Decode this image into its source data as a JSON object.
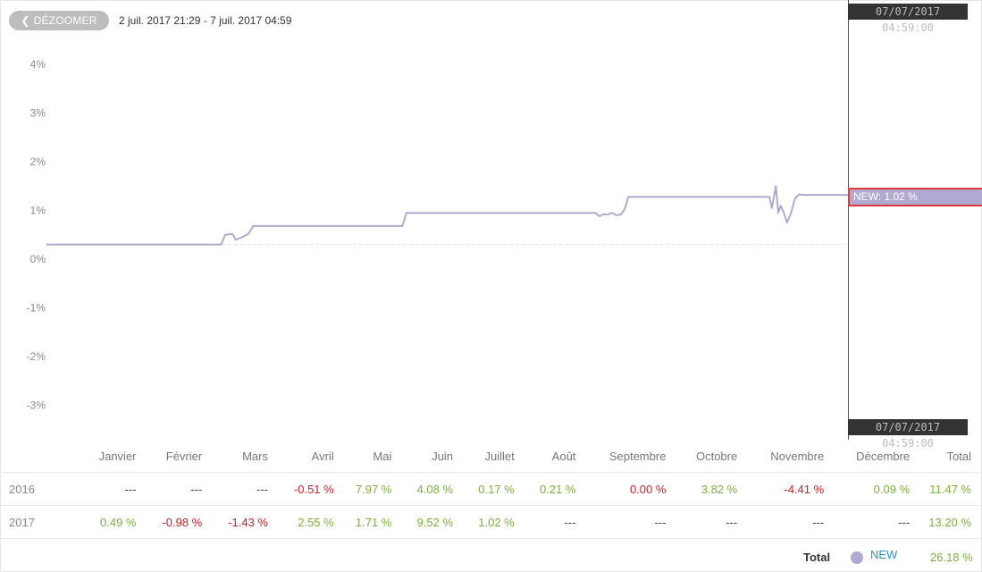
{
  "toolbar": {
    "zoom_out_label": "DÉZOOMER",
    "range_label": "2 juil. 2017 21:29 - 7 juil. 2017 04:59"
  },
  "crosshair": {
    "top_label": "07/07/2017 04:59:00",
    "bottom_label": "07/07/2017 04:59:00",
    "tooltip": "NEW: 1.02 %"
  },
  "chart_data": {
    "type": "line",
    "ylim": [
      -3.5,
      4.2
    ],
    "yticks": [
      4,
      3,
      2,
      1,
      0,
      -1,
      -2,
      -3
    ],
    "ytick_labels": [
      "4%",
      "3%",
      "2%",
      "1%",
      "0%",
      "-1%",
      "-2%",
      "-3%"
    ],
    "xlim": [
      0,
      100
    ],
    "grid": false,
    "baseline": 0.3,
    "series": [
      {
        "name": "NEW",
        "color": "#b1a9d2",
        "x": [
          0,
          21.8,
          22.3,
          23.2,
          23.6,
          24.4,
          25.2,
          25.8,
          26.4,
          44.4,
          44.9,
          45.4,
          68.5,
          69.0,
          69.4,
          70.0,
          70.6,
          71.1,
          71.7,
          72.2,
          72.6,
          72.9,
          73.3,
          73.6,
          74.1,
          90.2,
          90.5,
          91.0,
          91.3,
          91.6,
          92.0,
          92.4,
          92.9,
          93.4,
          93.9,
          94.5,
          100
        ],
        "y": [
          0.3,
          0.3,
          0.5,
          0.52,
          0.4,
          0.45,
          0.52,
          0.68,
          0.68,
          0.68,
          0.95,
          0.95,
          0.95,
          0.88,
          0.92,
          0.92,
          0.95,
          0.9,
          0.92,
          1.05,
          1.28,
          1.28,
          1.28,
          1.28,
          1.28,
          1.28,
          1.05,
          1.5,
          0.95,
          1.1,
          0.95,
          0.75,
          0.95,
          1.25,
          1.33,
          1.32,
          1.32
        ]
      }
    ]
  },
  "monthly": {
    "headers": [
      "Janvier",
      "Février",
      "Mars",
      "Avril",
      "Mai",
      "Juin",
      "Juillet",
      "Août",
      "Septembre",
      "Octobre",
      "Novembre",
      "Décembre",
      "Total"
    ],
    "rows": [
      {
        "year": "2016",
        "values": [
          "---",
          "---",
          "---",
          "-0.51 %",
          "7.97 %",
          "4.08 %",
          "0.17 %",
          "0.21 %",
          "0.00 %",
          "3.82 %",
          "-4.41 %",
          "0.09 %",
          "11.47 %"
        ],
        "signs": [
          "nul",
          "nul",
          "nul",
          "neg",
          "pos",
          "pos",
          "pos",
          "pos",
          "neg",
          "pos",
          "neg",
          "pos",
          "pos"
        ]
      },
      {
        "year": "2017",
        "values": [
          "0.49 %",
          "-0.98 %",
          "-1.43 %",
          "2.55 %",
          "1.71 %",
          "9.52 %",
          "1.02 %",
          "---",
          "---",
          "---",
          "---",
          "---",
          "13.20 %"
        ],
        "signs": [
          "pos",
          "neg",
          "neg",
          "pos",
          "pos",
          "pos",
          "pos",
          "nul",
          "nul",
          "nul",
          "nul",
          "nul",
          "pos"
        ]
      }
    ]
  },
  "total": {
    "label": "Total",
    "series_name": "NEW",
    "value": "26.18 %"
  }
}
